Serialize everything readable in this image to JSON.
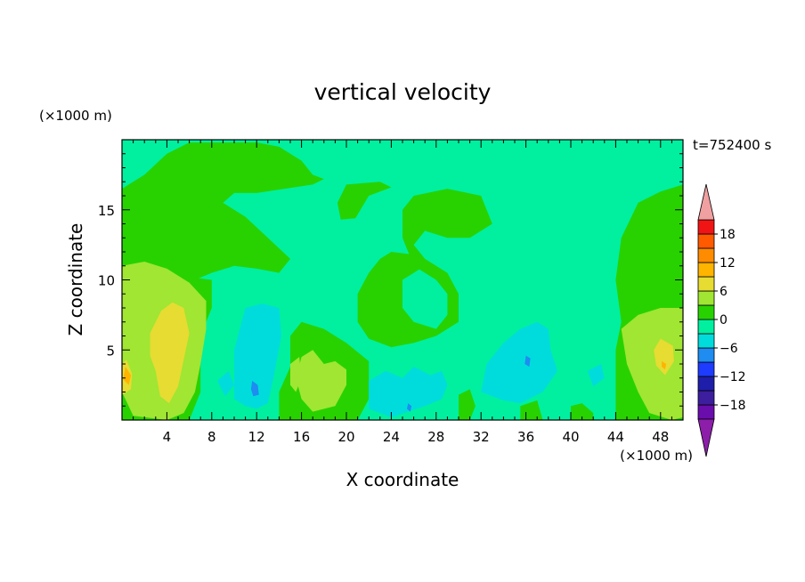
{
  "chart_data": {
    "type": "heatmap",
    "title": "vertical velocity",
    "xlabel": "X coordinate",
    "ylabel": "Z coordinate",
    "x_unit": "(×1000 m)",
    "y_unit": "(×1000 m)",
    "time_label": "t=752400 s",
    "xlim": [
      0,
      50
    ],
    "ylim": [
      0,
      20
    ],
    "x_ticks": [
      4,
      8,
      12,
      16,
      20,
      24,
      28,
      32,
      36,
      40,
      44,
      48
    ],
    "y_ticks": [
      5,
      10,
      15
    ],
    "colorbar": {
      "levels": [
        -21,
        -18,
        -15,
        -12,
        -9,
        -6,
        -3,
        0,
        3,
        6,
        9,
        12,
        15,
        18,
        21
      ],
      "tick_values": [
        -18,
        -12,
        -6,
        0,
        6,
        12,
        18
      ],
      "tick_labels": [
        "−18",
        "−12",
        "−6",
        "0",
        "6",
        "12",
        "18"
      ],
      "colors": [
        "#6a0dad",
        "#3c1e9e",
        "#1e1eaa",
        "#1e3cff",
        "#1e8cf0",
        "#00dcdc",
        "#00f0a0",
        "#28d200",
        "#a0e632",
        "#e6dc32",
        "#ffb400",
        "#ff8c00",
        "#ff5a00",
        "#f01414",
        "#ff3232"
      ],
      "under_color": "#8c1eaa",
      "over_color": "#f0a0a0"
    },
    "field_background": "#00f0a0",
    "regions": [
      {
        "level": 0,
        "color": "#28d200",
        "points": [
          [
            0,
            16.5
          ],
          [
            2,
            17.5
          ],
          [
            4,
            19
          ],
          [
            6,
            19.8
          ],
          [
            12,
            19.8
          ],
          [
            14,
            19.5
          ],
          [
            16,
            18.5
          ],
          [
            17,
            17.5
          ],
          [
            18,
            17.2
          ],
          [
            17,
            16.8
          ],
          [
            12,
            16.2
          ],
          [
            10,
            16.2
          ],
          [
            9,
            15.5
          ],
          [
            11,
            14.5
          ],
          [
            13,
            13
          ],
          [
            15,
            11.5
          ],
          [
            14,
            10.5
          ],
          [
            12,
            10.8
          ],
          [
            10,
            11
          ],
          [
            8,
            10.5
          ],
          [
            5,
            9.5
          ],
          [
            3,
            10
          ],
          [
            1,
            11
          ],
          [
            0,
            11
          ]
        ]
      },
      {
        "level": 0,
        "color": "#28d200",
        "points": [
          [
            0,
            12
          ],
          [
            2,
            11.3
          ],
          [
            4,
            11
          ],
          [
            6,
            10.2
          ],
          [
            8,
            10
          ],
          [
            8,
            8
          ],
          [
            7,
            6
          ],
          [
            7,
            4
          ],
          [
            7,
            2
          ],
          [
            6,
            0
          ],
          [
            0,
            0
          ]
        ]
      },
      {
        "level": 0,
        "color": "#28d200",
        "points": [
          [
            16,
            7
          ],
          [
            18,
            6.5
          ],
          [
            20,
            5.5
          ],
          [
            22,
            4.2
          ],
          [
            22,
            1.5
          ],
          [
            21,
            0
          ],
          [
            14,
            0
          ],
          [
            14,
            2
          ],
          [
            15,
            3.8
          ],
          [
            15,
            6
          ]
        ]
      },
      {
        "level": 0,
        "color": "#28d200",
        "points": [
          [
            21,
            9
          ],
          [
            22,
            10.5
          ],
          [
            23,
            11.5
          ],
          [
            24,
            12
          ],
          [
            26,
            11.8
          ],
          [
            27,
            11
          ],
          [
            25,
            10
          ],
          [
            25,
            8
          ],
          [
            26,
            7
          ],
          [
            28,
            6.5
          ],
          [
            29,
            7.5
          ],
          [
            29,
            9
          ],
          [
            28,
            10
          ],
          [
            26,
            11
          ],
          [
            25,
            13
          ],
          [
            25,
            15
          ],
          [
            26,
            16
          ],
          [
            29,
            16.5
          ],
          [
            32,
            16
          ],
          [
            33,
            14
          ],
          [
            31,
            13
          ],
          [
            29,
            13
          ],
          [
            27,
            13.5
          ],
          [
            26,
            12.5
          ],
          [
            27,
            11.5
          ],
          [
            29,
            10.5
          ],
          [
            30,
            9
          ],
          [
            30,
            7
          ],
          [
            28,
            6
          ],
          [
            26,
            5.5
          ],
          [
            24,
            5.2
          ],
          [
            22,
            5.8
          ],
          [
            21,
            7
          ]
        ]
      },
      {
        "level": 0,
        "color": "#28d200",
        "points": [
          [
            20,
            16.8
          ],
          [
            23,
            17
          ],
          [
            24,
            16.6
          ],
          [
            22,
            16
          ],
          [
            20.8,
            14.4
          ],
          [
            19.5,
            14.3
          ],
          [
            19.2,
            15.5
          ]
        ]
      },
      {
        "level": 0,
        "color": "#28d200",
        "points": [
          [
            44,
            0
          ],
          [
            44,
            5
          ],
          [
            44.5,
            7
          ],
          [
            44,
            10
          ],
          [
            44.5,
            13
          ],
          [
            46,
            15.5
          ],
          [
            48,
            16.3
          ],
          [
            50,
            16.8
          ],
          [
            50,
            0
          ]
        ]
      },
      {
        "level": 0,
        "color": "#28d200",
        "points": [
          [
            30,
            0
          ],
          [
            30,
            1.8
          ],
          [
            31,
            2.2
          ],
          [
            31.5,
            1
          ],
          [
            31,
            0
          ]
        ]
      },
      {
        "level": 0,
        "color": "#28d200",
        "points": [
          [
            35.5,
            0
          ],
          [
            35.5,
            1
          ],
          [
            37,
            1.4
          ],
          [
            37.5,
            0
          ]
        ]
      },
      {
        "level": 0,
        "color": "#28d200",
        "points": [
          [
            40,
            0
          ],
          [
            40,
            1
          ],
          [
            41,
            1.2
          ],
          [
            42,
            0.5
          ],
          [
            42,
            0
          ]
        ]
      },
      {
        "level": 3,
        "color": "#a0e632",
        "points": [
          [
            0,
            11
          ],
          [
            2,
            11.3
          ],
          [
            4,
            10.8
          ],
          [
            6,
            9.8
          ],
          [
            7.5,
            8.5
          ],
          [
            7.5,
            6.5
          ],
          [
            7,
            4
          ],
          [
            6.5,
            2
          ],
          [
            5.5,
            0.5
          ],
          [
            4,
            0
          ],
          [
            1,
            0.3
          ],
          [
            0,
            2
          ]
        ]
      },
      {
        "level": 3,
        "color": "#a0e632",
        "points": [
          [
            44.5,
            6.5
          ],
          [
            46,
            7.5
          ],
          [
            48,
            8
          ],
          [
            50,
            8
          ],
          [
            50,
            0.2
          ],
          [
            49,
            0
          ],
          [
            47,
            0.5
          ],
          [
            46,
            2
          ],
          [
            45,
            4
          ]
        ]
      },
      {
        "level": 3,
        "color": "#a0e632",
        "points": [
          [
            16,
            4.5
          ],
          [
            17,
            5
          ],
          [
            18,
            4
          ],
          [
            19,
            4.2
          ],
          [
            20,
            3.6
          ],
          [
            20,
            2.5
          ],
          [
            19,
            1
          ],
          [
            17,
            0.6
          ],
          [
            16,
            1.5
          ],
          [
            15.5,
            3
          ]
        ]
      },
      {
        "level": 3,
        "color": "#a0e632",
        "points": [
          [
            15,
            4
          ],
          [
            15.8,
            4.5
          ],
          [
            16,
            3
          ],
          [
            15.5,
            2
          ],
          [
            15,
            2.5
          ]
        ]
      },
      {
        "level": 6,
        "color": "#e6dc32",
        "points": [
          [
            2.5,
            6.2
          ],
          [
            3.5,
            7.8
          ],
          [
            4.5,
            8.4
          ],
          [
            5.5,
            8
          ],
          [
            6,
            6.2
          ],
          [
            5.5,
            4.3
          ],
          [
            5,
            2.4
          ],
          [
            4.2,
            1.2
          ],
          [
            3.4,
            1.7
          ],
          [
            3,
            3.5
          ],
          [
            2.5,
            4.6
          ]
        ]
      },
      {
        "level": 6,
        "color": "#e6dc32",
        "points": [
          [
            0,
            4
          ],
          [
            0.4,
            4.3
          ],
          [
            0.9,
            3.3
          ],
          [
            0.8,
            2.2
          ],
          [
            0,
            1.8
          ]
        ]
      },
      {
        "level": 6,
        "color": "#e6dc32",
        "points": [
          [
            48,
            5.8
          ],
          [
            49.1,
            5.3
          ],
          [
            49.2,
            4.2
          ],
          [
            48.4,
            3.2
          ],
          [
            47.6,
            3.9
          ],
          [
            47.4,
            5
          ]
        ]
      },
      {
        "level": 9,
        "color": "#ffb400",
        "points": [
          [
            0.3,
            3.8
          ],
          [
            0.8,
            3.2
          ],
          [
            0.6,
            2.5
          ],
          [
            0.1,
            2.9
          ]
        ]
      },
      {
        "level": 9,
        "color": "#ffb400",
        "points": [
          [
            48.1,
            4.2
          ],
          [
            48.5,
            4
          ],
          [
            48.4,
            3.6
          ],
          [
            48.1,
            3.8
          ]
        ]
      },
      {
        "level": -3,
        "color": "#00dcdc",
        "points": [
          [
            10,
            1.5
          ],
          [
            10,
            5
          ],
          [
            11,
            8
          ],
          [
            12.5,
            8.3
          ],
          [
            14,
            8
          ],
          [
            14.2,
            6
          ],
          [
            13.5,
            3
          ],
          [
            13,
            1.2
          ],
          [
            12,
            0.8
          ],
          [
            11,
            1
          ]
        ]
      },
      {
        "level": -3,
        "color": "#00dcdc",
        "points": [
          [
            22,
            0.8
          ],
          [
            22,
            2.8
          ],
          [
            23.5,
            3.5
          ],
          [
            25,
            3
          ],
          [
            26,
            3.8
          ],
          [
            27.5,
            3.2
          ],
          [
            28.5,
            3.5
          ],
          [
            29,
            2.5
          ],
          [
            28.5,
            1.5
          ],
          [
            27,
            1
          ],
          [
            25.5,
            0.6
          ],
          [
            24,
            0.2
          ],
          [
            23,
            0.5
          ]
        ]
      },
      {
        "level": -3,
        "color": "#00dcdc",
        "points": [
          [
            32,
            2
          ],
          [
            32.5,
            4
          ],
          [
            34,
            5.5
          ],
          [
            35.5,
            6.5
          ],
          [
            37,
            7
          ],
          [
            38,
            6.5
          ],
          [
            38.2,
            5
          ],
          [
            38.8,
            3.5
          ],
          [
            37.5,
            2
          ],
          [
            35.5,
            1.2
          ],
          [
            34,
            1.4
          ]
        ]
      },
      {
        "level": -3,
        "color": "#00dcdc",
        "points": [
          [
            41.5,
            3.5
          ],
          [
            42.7,
            4
          ],
          [
            43,
            3
          ],
          [
            42,
            2.4
          ]
        ]
      },
      {
        "level": -3,
        "color": "#00dcdc",
        "points": [
          [
            8.5,
            2.8
          ],
          [
            9.5,
            3.5
          ],
          [
            10,
            2.5
          ],
          [
            9.2,
            1.7
          ]
        ]
      },
      {
        "level": -6,
        "color": "#1e8cf0",
        "points": [
          [
            11.6,
            2.8
          ],
          [
            12.1,
            2.5
          ],
          [
            12.2,
            1.8
          ],
          [
            11.7,
            1.7
          ],
          [
            11.5,
            2.2
          ]
        ]
      },
      {
        "level": -6,
        "color": "#1e8cf0",
        "points": [
          [
            25.5,
            1.2
          ],
          [
            25.8,
            1
          ],
          [
            25.7,
            0.6
          ],
          [
            25.4,
            0.8
          ]
        ]
      },
      {
        "level": -6,
        "color": "#1e8cf0",
        "points": [
          [
            36,
            4.6
          ],
          [
            36.4,
            4.4
          ],
          [
            36.3,
            3.8
          ],
          [
            35.9,
            4
          ]
        ]
      }
    ]
  }
}
